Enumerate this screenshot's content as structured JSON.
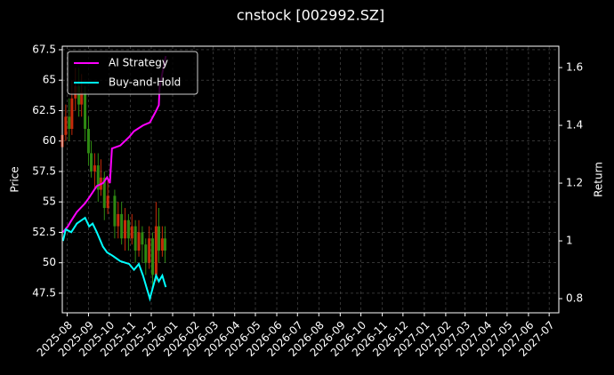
{
  "chart_data": {
    "type": "candlestick",
    "title": "cnstock [002992.SZ]",
    "y_label": "Price",
    "y2_label": "Return",
    "xlim": [
      "2025-07-25",
      "2027-07-15"
    ],
    "ylim": [
      45.89,
      67.79
    ],
    "yticks": [
      47.5,
      50.0,
      52.5,
      55.0,
      57.5,
      60.0,
      62.5,
      65.0,
      67.5
    ],
    "y2lim": [
      0.751,
      1.674
    ],
    "y2ticks": [
      0.8,
      1.0,
      1.2,
      1.4,
      1.6
    ],
    "grid": true,
    "legend": "upper left",
    "xticks": [
      {
        "value": "2025-08-01",
        "label": "2025-08"
      },
      {
        "value": "2025-09-01",
        "label": "2025-09"
      },
      {
        "value": "2025-10-01",
        "label": "2025-10"
      },
      {
        "value": "2025-11-01",
        "label": "2025-11"
      },
      {
        "value": "2025-12-01",
        "label": "2025-12"
      },
      {
        "value": "2026-01-01",
        "label": "2026-01"
      },
      {
        "value": "2026-02-01",
        "label": "2026-02"
      },
      {
        "value": "2026-03-01",
        "label": "2026-03"
      },
      {
        "value": "2026-04-01",
        "label": "2026-04"
      },
      {
        "value": "2026-05-01",
        "label": "2026-05"
      },
      {
        "value": "2026-06-01",
        "label": "2026-06"
      },
      {
        "value": "2026-07-01",
        "label": "2026-07"
      },
      {
        "value": "2026-08-01",
        "label": "2026-08"
      },
      {
        "value": "2026-09-01",
        "label": "2026-09"
      },
      {
        "value": "2026-10-01",
        "label": "2026-10"
      },
      {
        "value": "2026-11-01",
        "label": "2026-11"
      },
      {
        "value": "2026-12-01",
        "label": "2026-12"
      },
      {
        "value": "2027-01-01",
        "label": "2027-01"
      },
      {
        "value": "2027-02-01",
        "label": "2027-02"
      },
      {
        "value": "2027-03-01",
        "label": "2027-03"
      },
      {
        "value": "2027-04-01",
        "label": "2027-04"
      },
      {
        "value": "2027-05-01",
        "label": "2027-05"
      },
      {
        "value": "2027-06-01",
        "label": "2027-06"
      },
      {
        "value": "2027-07-01",
        "label": "2027-07"
      }
    ],
    "candles": {
      "up_color": "#c62a0a",
      "down_color": "#2e8a12",
      "x": [
        "2025-07-25",
        "2025-07-30",
        "2025-08-04",
        "2025-08-08",
        "2025-08-13",
        "2025-08-18",
        "2025-08-22",
        "2025-08-27",
        "2025-09-01",
        "2025-09-05",
        "2025-09-10",
        "2025-09-15",
        "2025-09-19",
        "2025-09-24",
        "2025-09-29",
        "2025-10-09",
        "2025-10-14",
        "2025-10-19",
        "2025-10-24",
        "2025-10-29",
        "2025-11-03",
        "2025-11-08",
        "2025-11-13",
        "2025-11-18",
        "2025-11-23",
        "2025-11-28",
        "2025-12-03",
        "2025-12-08",
        "2025-12-12",
        "2025-12-17",
        "2025-12-21"
      ],
      "open": [
        59.5,
        60.5,
        62,
        61,
        63.5,
        64.5,
        63,
        64,
        61,
        59,
        57.5,
        58,
        56,
        57,
        54.5,
        55.5,
        53,
        54,
        52,
        53.5,
        52,
        53,
        51,
        52.5,
        51.5,
        50,
        52,
        49,
        53,
        51,
        52
      ],
      "close": [
        60.5,
        62,
        61,
        63.5,
        64.5,
        63,
        64,
        61,
        59,
        57.5,
        58,
        56,
        57,
        54.5,
        55.5,
        53,
        54,
        52,
        53.5,
        52,
        53,
        51,
        52.5,
        51.5,
        50,
        52,
        49,
        53,
        51,
        52,
        51
      ],
      "high": [
        61.5,
        63,
        63.5,
        65,
        66,
        66,
        65.5,
        64.5,
        62,
        60,
        59,
        59,
        58.5,
        57.5,
        57,
        56,
        55,
        55,
        54.5,
        54,
        54,
        53.5,
        53.5,
        53,
        52,
        53,
        52.5,
        55,
        54.5,
        53,
        53
      ],
      "low": [
        58.5,
        60,
        60,
        60.5,
        62.5,
        62,
        62,
        60,
        58,
        57,
        56,
        55,
        55.5,
        53.5,
        54,
        52,
        52,
        51.5,
        51,
        51,
        51.5,
        50,
        50.5,
        50,
        49,
        49.5,
        48,
        48.5,
        50,
        50.5,
        50
      ]
    },
    "series": [
      {
        "name": "AI Strategy",
        "color": "#ff00ff",
        "axis": "y2",
        "x": [
          "2025-07-26",
          "2025-08-02",
          "2025-08-07",
          "2025-08-15",
          "2025-08-27",
          "2025-09-02",
          "2025-09-13",
          "2025-09-22",
          "2025-09-28",
          "2025-10-02",
          "2025-10-05",
          "2025-10-17",
          "2025-10-30",
          "2025-11-06",
          "2025-11-19",
          "2025-11-29",
          "2025-12-08",
          "2025-12-12",
          "2025-12-13",
          "2025-12-17",
          "2025-12-22"
        ],
        "values": [
          1.03,
          1.05,
          1.07,
          1.1,
          1.13,
          1.15,
          1.19,
          1.2,
          1.22,
          1.2,
          1.32,
          1.33,
          1.36,
          1.38,
          1.4,
          1.41,
          1.45,
          1.47,
          1.53,
          1.58,
          1.64
        ]
      },
      {
        "name": "Buy-and-Hold",
        "color": "#00ffff",
        "axis": "y2",
        "x": [
          "2025-07-26",
          "2025-07-30",
          "2025-08-07",
          "2025-08-15",
          "2025-08-27",
          "2025-09-02",
          "2025-09-07",
          "2025-09-13",
          "2025-09-22",
          "2025-09-28",
          "2025-10-05",
          "2025-10-17",
          "2025-10-30",
          "2025-11-06",
          "2025-11-13",
          "2025-11-19",
          "2025-11-29",
          "2025-12-08",
          "2025-12-12",
          "2025-12-17",
          "2025-12-22"
        ],
        "values": [
          1.0,
          1.04,
          1.03,
          1.06,
          1.08,
          1.05,
          1.06,
          1.03,
          0.98,
          0.96,
          0.95,
          0.93,
          0.92,
          0.9,
          0.92,
          0.88,
          0.8,
          0.88,
          0.86,
          0.88,
          0.84
        ]
      }
    ]
  }
}
